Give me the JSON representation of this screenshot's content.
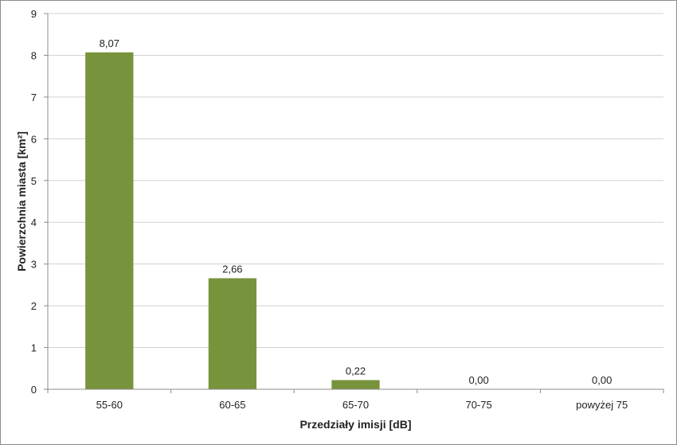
{
  "chart_data": {
    "type": "bar",
    "categories": [
      "55-60",
      "60-65",
      "65-70",
      "70-75",
      "powyżej 75"
    ],
    "values": [
      8.07,
      2.66,
      0.22,
      0.0,
      0.0
    ],
    "data_labels": [
      "8,07",
      "2,66",
      "0,22",
      "0,00",
      "0,00"
    ],
    "title": "",
    "xlabel": "Przedziały imisji [dB]",
    "ylabel": "Powierzchnia miasta [km²]",
    "ylim": [
      0,
      9
    ],
    "yticks": [
      "0",
      "1",
      "2",
      "3",
      "4",
      "5",
      "6",
      "7",
      "8",
      "9"
    ],
    "grid": true,
    "legend": "none",
    "bar_color": "#77933c",
    "grid_color": "#d0d0d0"
  }
}
